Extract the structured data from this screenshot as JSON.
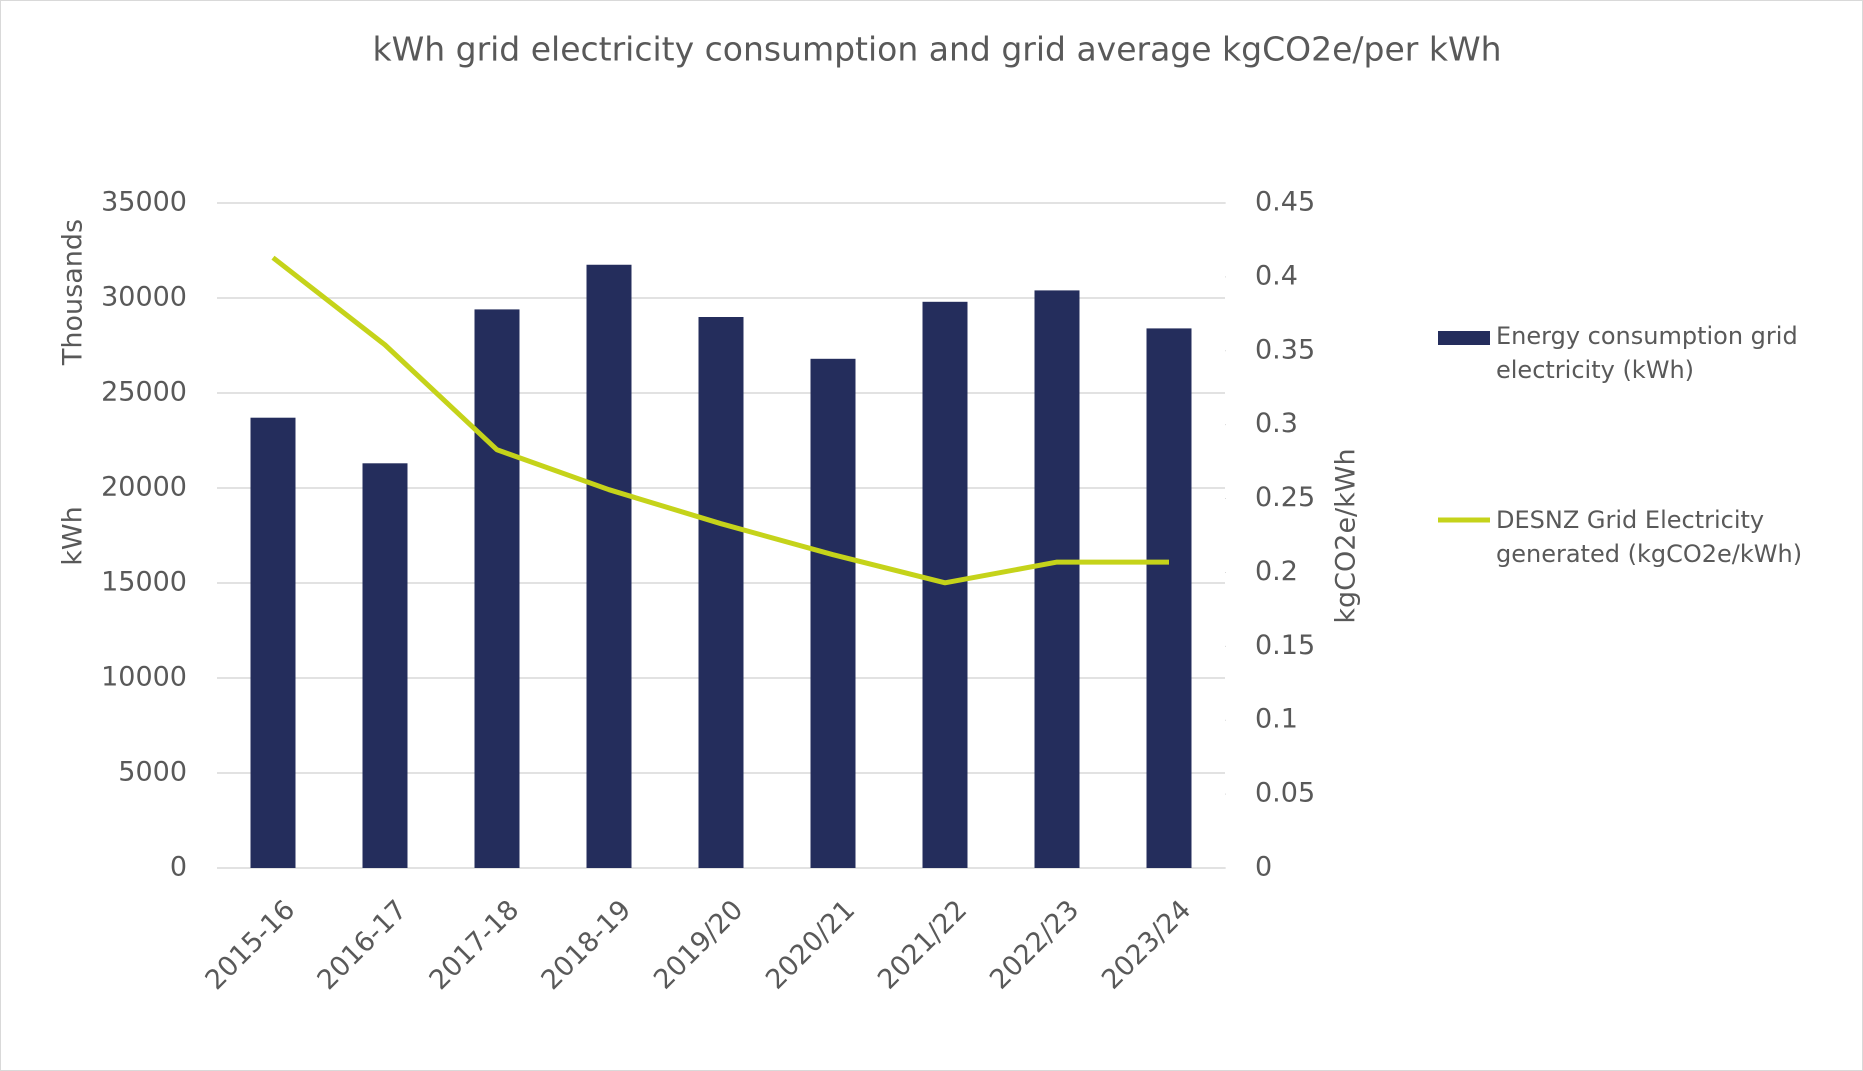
{
  "chart_data": {
    "type": "bar-line",
    "title": "kWh grid electricity consumption and grid average kgCO2e/per kWh",
    "y_label_units": "Thousands",
    "y_label": "kWh",
    "y2_label": "kgCO2e/kWh",
    "categories": [
      "2015-16",
      "2016-17",
      "2017-18",
      "2018-19",
      "2019/20",
      "2020/21",
      "2021/22",
      "2022/23",
      "2023/24"
    ],
    "series": [
      {
        "name": "Energy consumption grid electricity (kWh)",
        "type": "bar",
        "color": "#242d5c",
        "values": [
          23700,
          21300,
          29400,
          31750,
          29000,
          26800,
          29800,
          30400,
          28400
        ]
      },
      {
        "name": "DESNZ Grid Electricity generated (kgCO2e/kWh)",
        "type": "line",
        "color": "#c5d31a",
        "axis": "y2",
        "values": [
          0.413,
          0.354,
          0.283,
          0.256,
          0.233,
          0.212,
          0.193,
          0.207,
          0.207
        ]
      }
    ],
    "ylim": [
      0,
      35000
    ],
    "yticks": [
      0,
      5000,
      10000,
      15000,
      20000,
      25000,
      30000,
      35000
    ],
    "y2lim": [
      0,
      0.45
    ],
    "y2ticks": [
      0,
      0.05,
      0.1,
      0.15,
      0.2,
      0.25,
      0.3,
      0.35,
      0.4,
      0.45
    ],
    "grid": true,
    "legend": "right"
  }
}
